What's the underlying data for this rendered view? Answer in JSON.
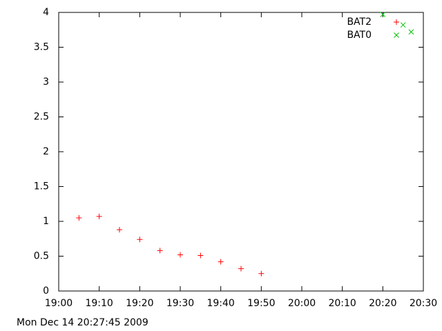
{
  "chart_data": {
    "type": "scatter",
    "xlim": [
      "19:00",
      "20:30"
    ],
    "xticks": [
      "19:00",
      "19:10",
      "19:20",
      "19:30",
      "19:40",
      "19:50",
      "20:00",
      "20:10",
      "20:20",
      "20:30"
    ],
    "ylim": [
      0,
      4
    ],
    "yticks": [
      0,
      0.5,
      1,
      1.5,
      2,
      2.5,
      3,
      3.5,
      4
    ],
    "legend": "top-right",
    "series": [
      {
        "name": "BAT2",
        "color": "#ff0000",
        "marker": "plus",
        "x": [
          "19:05",
          "19:10",
          "19:15",
          "19:20",
          "19:25",
          "19:30",
          "19:35",
          "19:40",
          "19:45",
          "19:50"
        ],
        "values": [
          1.05,
          1.07,
          0.88,
          0.74,
          0.58,
          0.52,
          0.51,
          0.42,
          0.32,
          0.25
        ]
      },
      {
        "name": "BAT0",
        "color": "#00c000",
        "marker": "cross",
        "x": [
          "20:20",
          "20:25",
          "20:27"
        ],
        "values": [
          3.97,
          3.82,
          3.72
        ]
      }
    ],
    "timestamp": "Mon Dec 14 20:27:45 2009"
  }
}
